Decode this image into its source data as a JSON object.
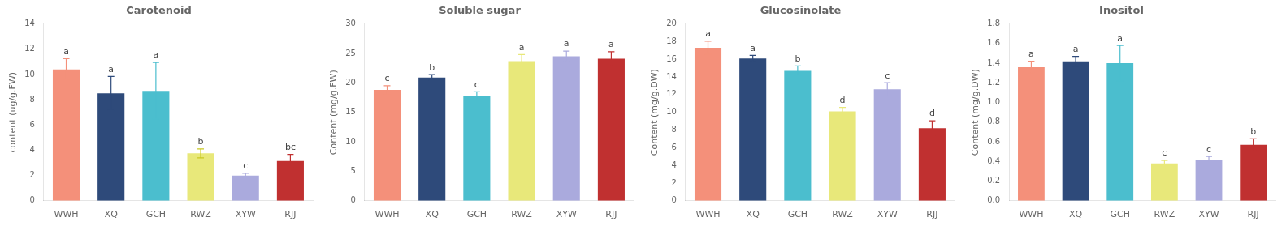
{
  "chart_data": [
    {
      "type": "bar",
      "title": "Carotenoid",
      "ylabel": "content (ug/g.FW)",
      "categories": [
        "WWH",
        "XQ",
        "GCH",
        "RWZ",
        "XYW",
        "RJJ"
      ],
      "values": [
        10.4,
        8.5,
        8.7,
        3.75,
        2.0,
        3.15
      ],
      "errors": [
        0.85,
        1.35,
        2.25,
        0.35,
        0.18,
        0.52
      ],
      "error_colors": [
        "#F4907A",
        "#2E4A7A",
        "#4BBECE",
        "#C8C820",
        "#AAAADD",
        "#C03030"
      ],
      "annotations": [
        "a",
        "a",
        "a",
        "b",
        "c",
        "bc"
      ],
      "colors": [
        "#F4907A",
        "#2E4A7A",
        "#4BBECE",
        "#E8E87A",
        "#AAAADD",
        "#C03030"
      ],
      "ylim": [
        0,
        14
      ],
      "yticks": [
        0,
        2,
        4,
        6,
        8,
        10,
        12,
        14
      ],
      "grid": false
    },
    {
      "type": "bar",
      "title": "Soluble sugar",
      "ylabel": "Content (mg/g.FW)",
      "categories": [
        "WWH",
        "XQ",
        "GCH",
        "RWZ",
        "XYW",
        "RJJ"
      ],
      "values": [
        18.8,
        20.9,
        17.8,
        23.7,
        24.5,
        24.1
      ],
      "errors": [
        0.7,
        0.5,
        0.7,
        1.1,
        0.9,
        1.2
      ],
      "error_colors": [
        "#F4907A",
        "#2E4A7A",
        "#4BBECE",
        "#E8E87A",
        "#AAAADD",
        "#C03030"
      ],
      "annotations": [
        "c",
        "b",
        "c",
        "a",
        "a",
        "a"
      ],
      "colors": [
        "#F4907A",
        "#2E4A7A",
        "#4BBECE",
        "#E8E87A",
        "#AAAADD",
        "#C03030"
      ],
      "ylim": [
        0,
        30
      ],
      "yticks": [
        0,
        5,
        10,
        15,
        20,
        25,
        30
      ],
      "grid": false
    },
    {
      "type": "bar",
      "title": "Glucosinolate",
      "ylabel": "Content (mg/g.DW)",
      "categories": [
        "WWH",
        "XQ",
        "GCH",
        "RWZ",
        "XYW",
        "RJJ"
      ],
      "values": [
        17.3,
        16.1,
        14.7,
        10.1,
        12.6,
        8.2
      ],
      "errors": [
        0.75,
        0.35,
        0.55,
        0.45,
        0.75,
        0.85
      ],
      "error_colors": [
        "#F4907A",
        "#2E4A7A",
        "#4BBECE",
        "#E8E87A",
        "#AAAADD",
        "#C03030"
      ],
      "annotations": [
        "a",
        "a",
        "b",
        "d",
        "c",
        "d"
      ],
      "colors": [
        "#F4907A",
        "#2E4A7A",
        "#4BBECE",
        "#E8E87A",
        "#AAAADD",
        "#C03030"
      ],
      "ylim": [
        0,
        20
      ],
      "yticks": [
        0,
        2,
        4,
        6,
        8,
        10,
        12,
        14,
        16,
        18,
        20
      ],
      "grid": false
    },
    {
      "type": "bar",
      "title": "Inositol",
      "ylabel": "Content (mg/g.DW)",
      "categories": [
        "WWH",
        "XQ",
        "GCH",
        "RWZ",
        "XYW",
        "RJJ"
      ],
      "values": [
        1.36,
        1.42,
        1.4,
        0.38,
        0.42,
        0.57
      ],
      "errors": [
        0.06,
        0.05,
        0.18,
        0.03,
        0.03,
        0.06
      ],
      "error_colors": [
        "#F4907A",
        "#2E4A7A",
        "#4BBECE",
        "#E8E87A",
        "#AAAADD",
        "#C03030"
      ],
      "annotations": [
        "a",
        "a",
        "a",
        "c",
        "c",
        "b"
      ],
      "colors": [
        "#F4907A",
        "#2E4A7A",
        "#4BBECE",
        "#E8E87A",
        "#AAAADD",
        "#C03030"
      ],
      "ylim": [
        0,
        1.8
      ],
      "yticks": [
        {
          "value": 0,
          "label": "0.0"
        },
        0.2,
        0.4,
        0.6,
        0.8,
        {
          "value": 1,
          "label": "1.0"
        },
        1.2,
        1.4,
        1.6,
        1.8
      ],
      "grid": false
    }
  ]
}
